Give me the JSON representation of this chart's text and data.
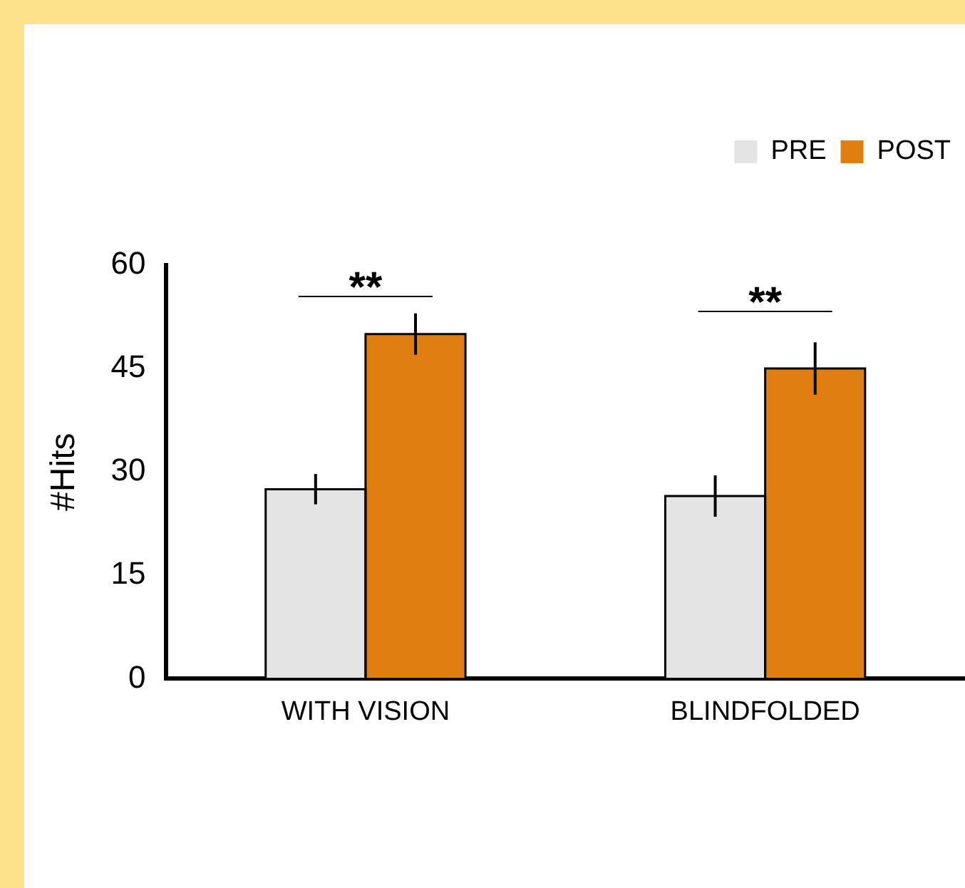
{
  "chart_data": {
    "type": "bar",
    "ylabel": "#Hits",
    "categories": [
      "WITH VISION",
      "BLINDFOLDED"
    ],
    "series": [
      {
        "name": "PRE",
        "color": "#e4e4e4",
        "values": [
          27.5,
          26.5
        ],
        "errors": [
          2.2,
          3
        ]
      },
      {
        "name": "POST",
        "color": "#e07f10",
        "values": [
          50,
          45
        ],
        "errors": [
          3,
          3.8
        ]
      }
    ],
    "ylim": [
      0,
      60
    ],
    "yticks": [
      0,
      15,
      30,
      45,
      60
    ],
    "grid": false,
    "legend": "top right",
    "annotations": [
      "**",
      "**"
    ]
  }
}
